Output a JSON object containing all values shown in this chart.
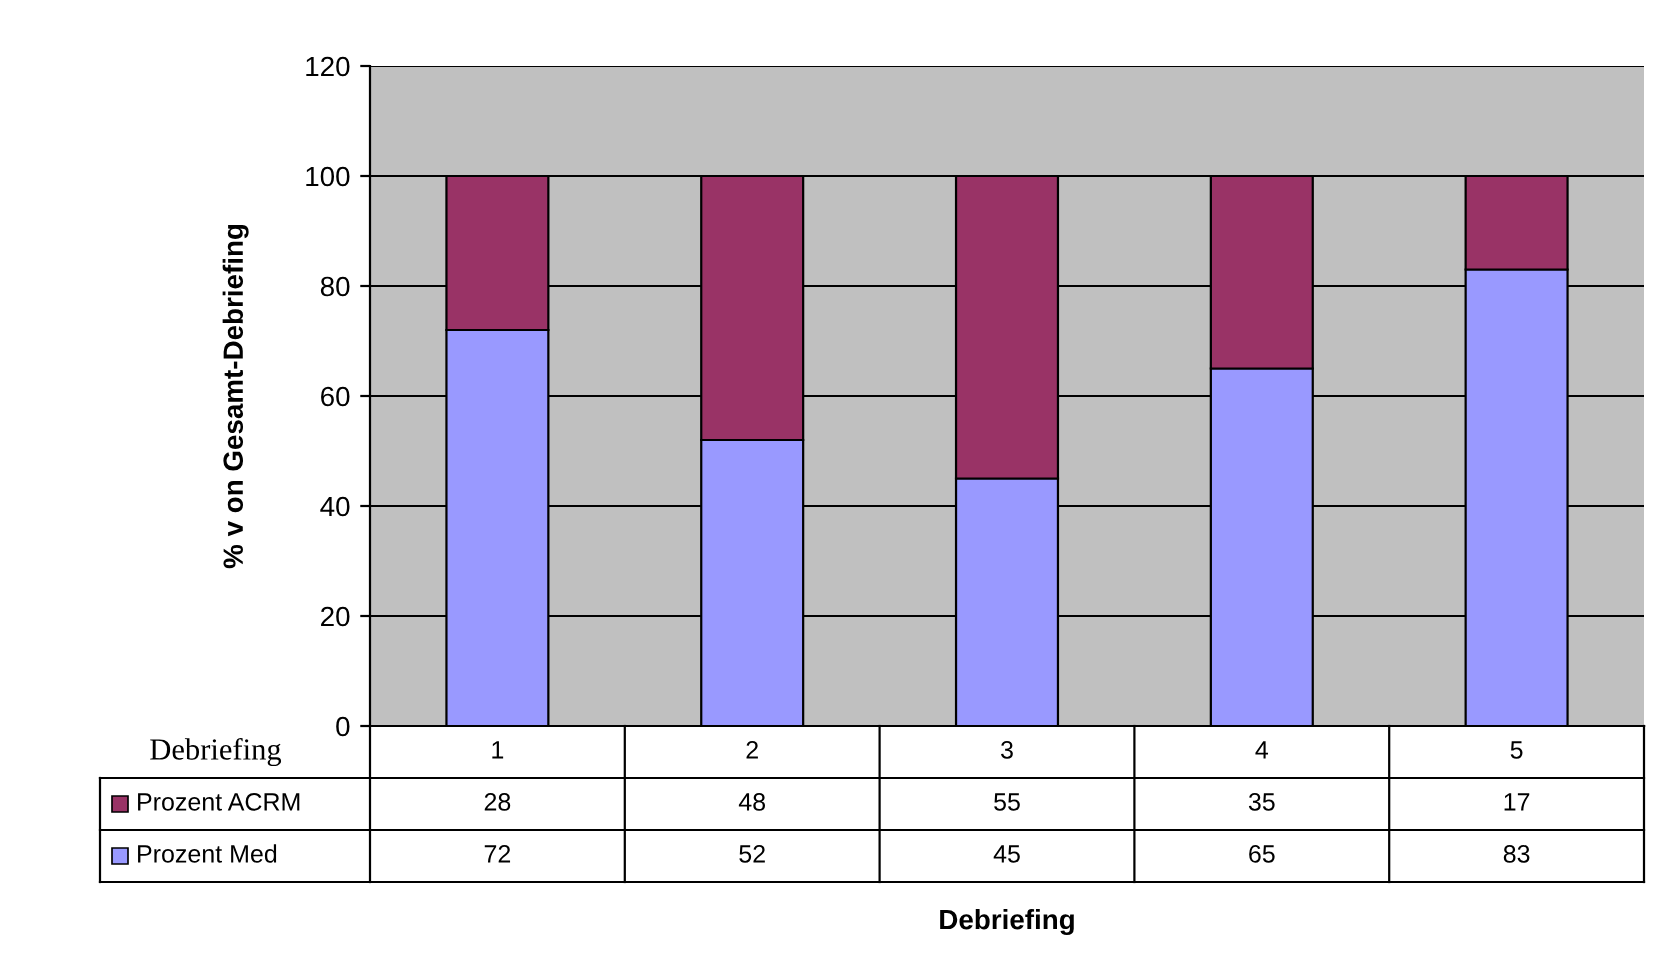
{
  "chart_data": {
    "type": "bar",
    "stacked": true,
    "categories": [
      "1",
      "2",
      "3",
      "4",
      "5"
    ],
    "series": [
      {
        "name": "Prozent Med",
        "color": "#9999ff",
        "values": [
          72,
          52,
          45,
          65,
          83
        ]
      },
      {
        "name": "Prozent ACRM",
        "color": "#993366",
        "values": [
          28,
          48,
          55,
          35,
          17
        ]
      }
    ],
    "ylabel": "% v on Gesamt-Debriefing",
    "annotations": [
      "Debriefing",
      "Debriefing"
    ],
    "ylim": [
      0,
      120
    ],
    "yticks": [
      0,
      20,
      40,
      60,
      80,
      100,
      120
    ],
    "grid": "y",
    "legend": "bottom left",
    "data_labels": true
  }
}
